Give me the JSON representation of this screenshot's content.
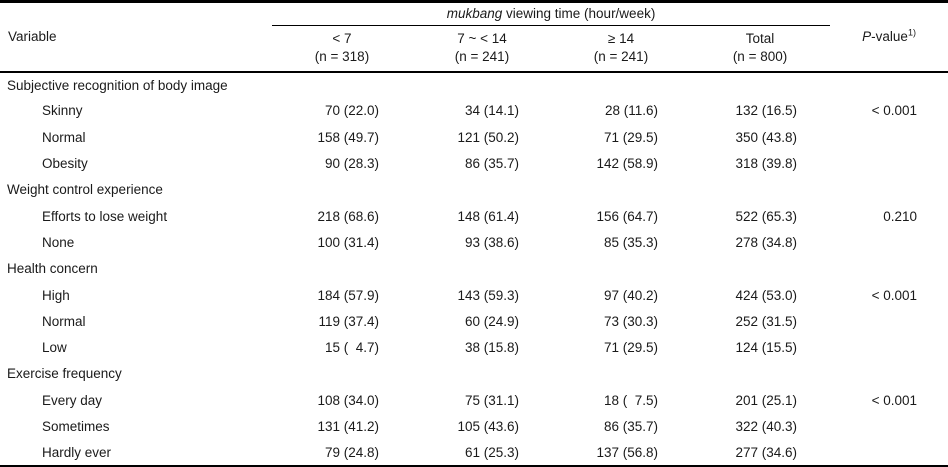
{
  "table": {
    "header": {
      "variable_label": "Variable",
      "spanner_italic": "mukbang",
      "spanner_rest": " viewing time (hour/week)",
      "pvalue_italic": "P",
      "pvalue_rest": "-value",
      "pvalue_sup": "1)",
      "columns": [
        {
          "label": "< 7",
          "n": "(n = 318)"
        },
        {
          "label": "7 ~ < 14",
          "n": "(n = 241)"
        },
        {
          "label": "≥ 14",
          "n": "(n = 241)"
        },
        {
          "label": "Total",
          "n": "(n = 800)"
        }
      ]
    },
    "sections": [
      {
        "title": "Subjective recognition of body image",
        "rows": [
          {
            "label": "Skinny",
            "values": [
              "70 (22.0)",
              "34 (14.1)",
              "28 (11.6)",
              "132 (16.5)"
            ],
            "p": "< 0.001"
          },
          {
            "label": "Normal",
            "values": [
              "158 (49.7)",
              "121 (50.2)",
              "71 (29.5)",
              "350 (43.8)"
            ],
            "p": ""
          },
          {
            "label": "Obesity",
            "values": [
              "90 (28.3)",
              "86 (35.7)",
              "142 (58.9)",
              "318 (39.8)"
            ],
            "p": ""
          }
        ]
      },
      {
        "title": "Weight control experience",
        "rows": [
          {
            "label": "Efforts to lose weight",
            "values": [
              "218 (68.6)",
              "148 (61.4)",
              "156 (64.7)",
              "522 (65.3)"
            ],
            "p": "0.210"
          },
          {
            "label": "None",
            "values": [
              "100 (31.4)",
              "93 (38.6)",
              "85 (35.3)",
              "278 (34.8)"
            ],
            "p": ""
          }
        ]
      },
      {
        "title": "Health concern",
        "rows": [
          {
            "label": "High",
            "values": [
              "184 (57.9)",
              "143 (59.3)",
              "97 (40.2)",
              "424 (53.0)"
            ],
            "p": "< 0.001"
          },
          {
            "label": "Normal",
            "values": [
              "119 (37.4)",
              "60 (24.9)",
              "73 (30.3)",
              "252 (31.5)"
            ],
            "p": ""
          },
          {
            "label": "Low",
            "values": [
              "15 (  4.7)",
              "38 (15.8)",
              "71 (29.5)",
              "124 (15.5)"
            ],
            "p": ""
          }
        ]
      },
      {
        "title": "Exercise frequency",
        "rows": [
          {
            "label": "Every day",
            "values": [
              "108 (34.0)",
              "75 (31.1)",
              "18 (  7.5)",
              "201 (25.1)"
            ],
            "p": "< 0.001"
          },
          {
            "label": "Sometimes",
            "values": [
              "131 (41.2)",
              "105 (43.6)",
              "86 (35.7)",
              "322 (40.3)"
            ],
            "p": ""
          },
          {
            "label": "Hardly ever",
            "values": [
              "79 (24.8)",
              "61 (25.3)",
              "137 (56.8)",
              "277 (34.6)"
            ],
            "p": ""
          }
        ]
      }
    ]
  }
}
